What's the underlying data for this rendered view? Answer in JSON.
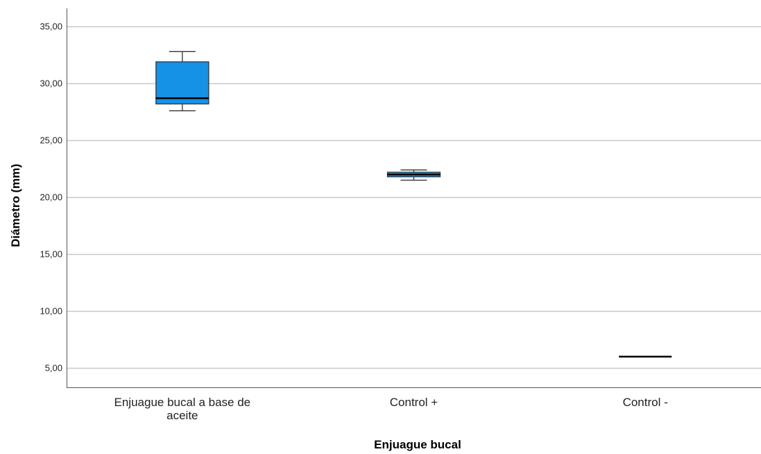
{
  "chart_data": {
    "type": "boxplot",
    "xlabel": "Enjuague bucal",
    "ylabel": "Diámetro (mm)",
    "ylim": [
      3.3,
      36.6
    ],
    "yticks": [
      5,
      10,
      15,
      20,
      25,
      30,
      35
    ],
    "ytick_labels": [
      "5,00",
      "10,00",
      "15,00",
      "20,00",
      "25,00",
      "30,00",
      "35,00"
    ],
    "grid": true,
    "box_color": "#1591e6",
    "categories": [
      {
        "label_lines": [
          "Enjuague bucal a base de",
          "aceite"
        ],
        "whisker_low": 27.6,
        "q1": 28.2,
        "median": 28.7,
        "q3": 31.9,
        "whisker_high": 32.8
      },
      {
        "label_lines": [
          "Control +"
        ],
        "whisker_low": 21.5,
        "q1": 21.8,
        "median": 22.0,
        "q3": 22.2,
        "whisker_high": 22.4
      },
      {
        "label_lines": [
          "Control -"
        ],
        "whisker_low": 6.0,
        "q1": 6.0,
        "median": 6.0,
        "q3": 6.0,
        "whisker_high": 6.0
      }
    ]
  }
}
